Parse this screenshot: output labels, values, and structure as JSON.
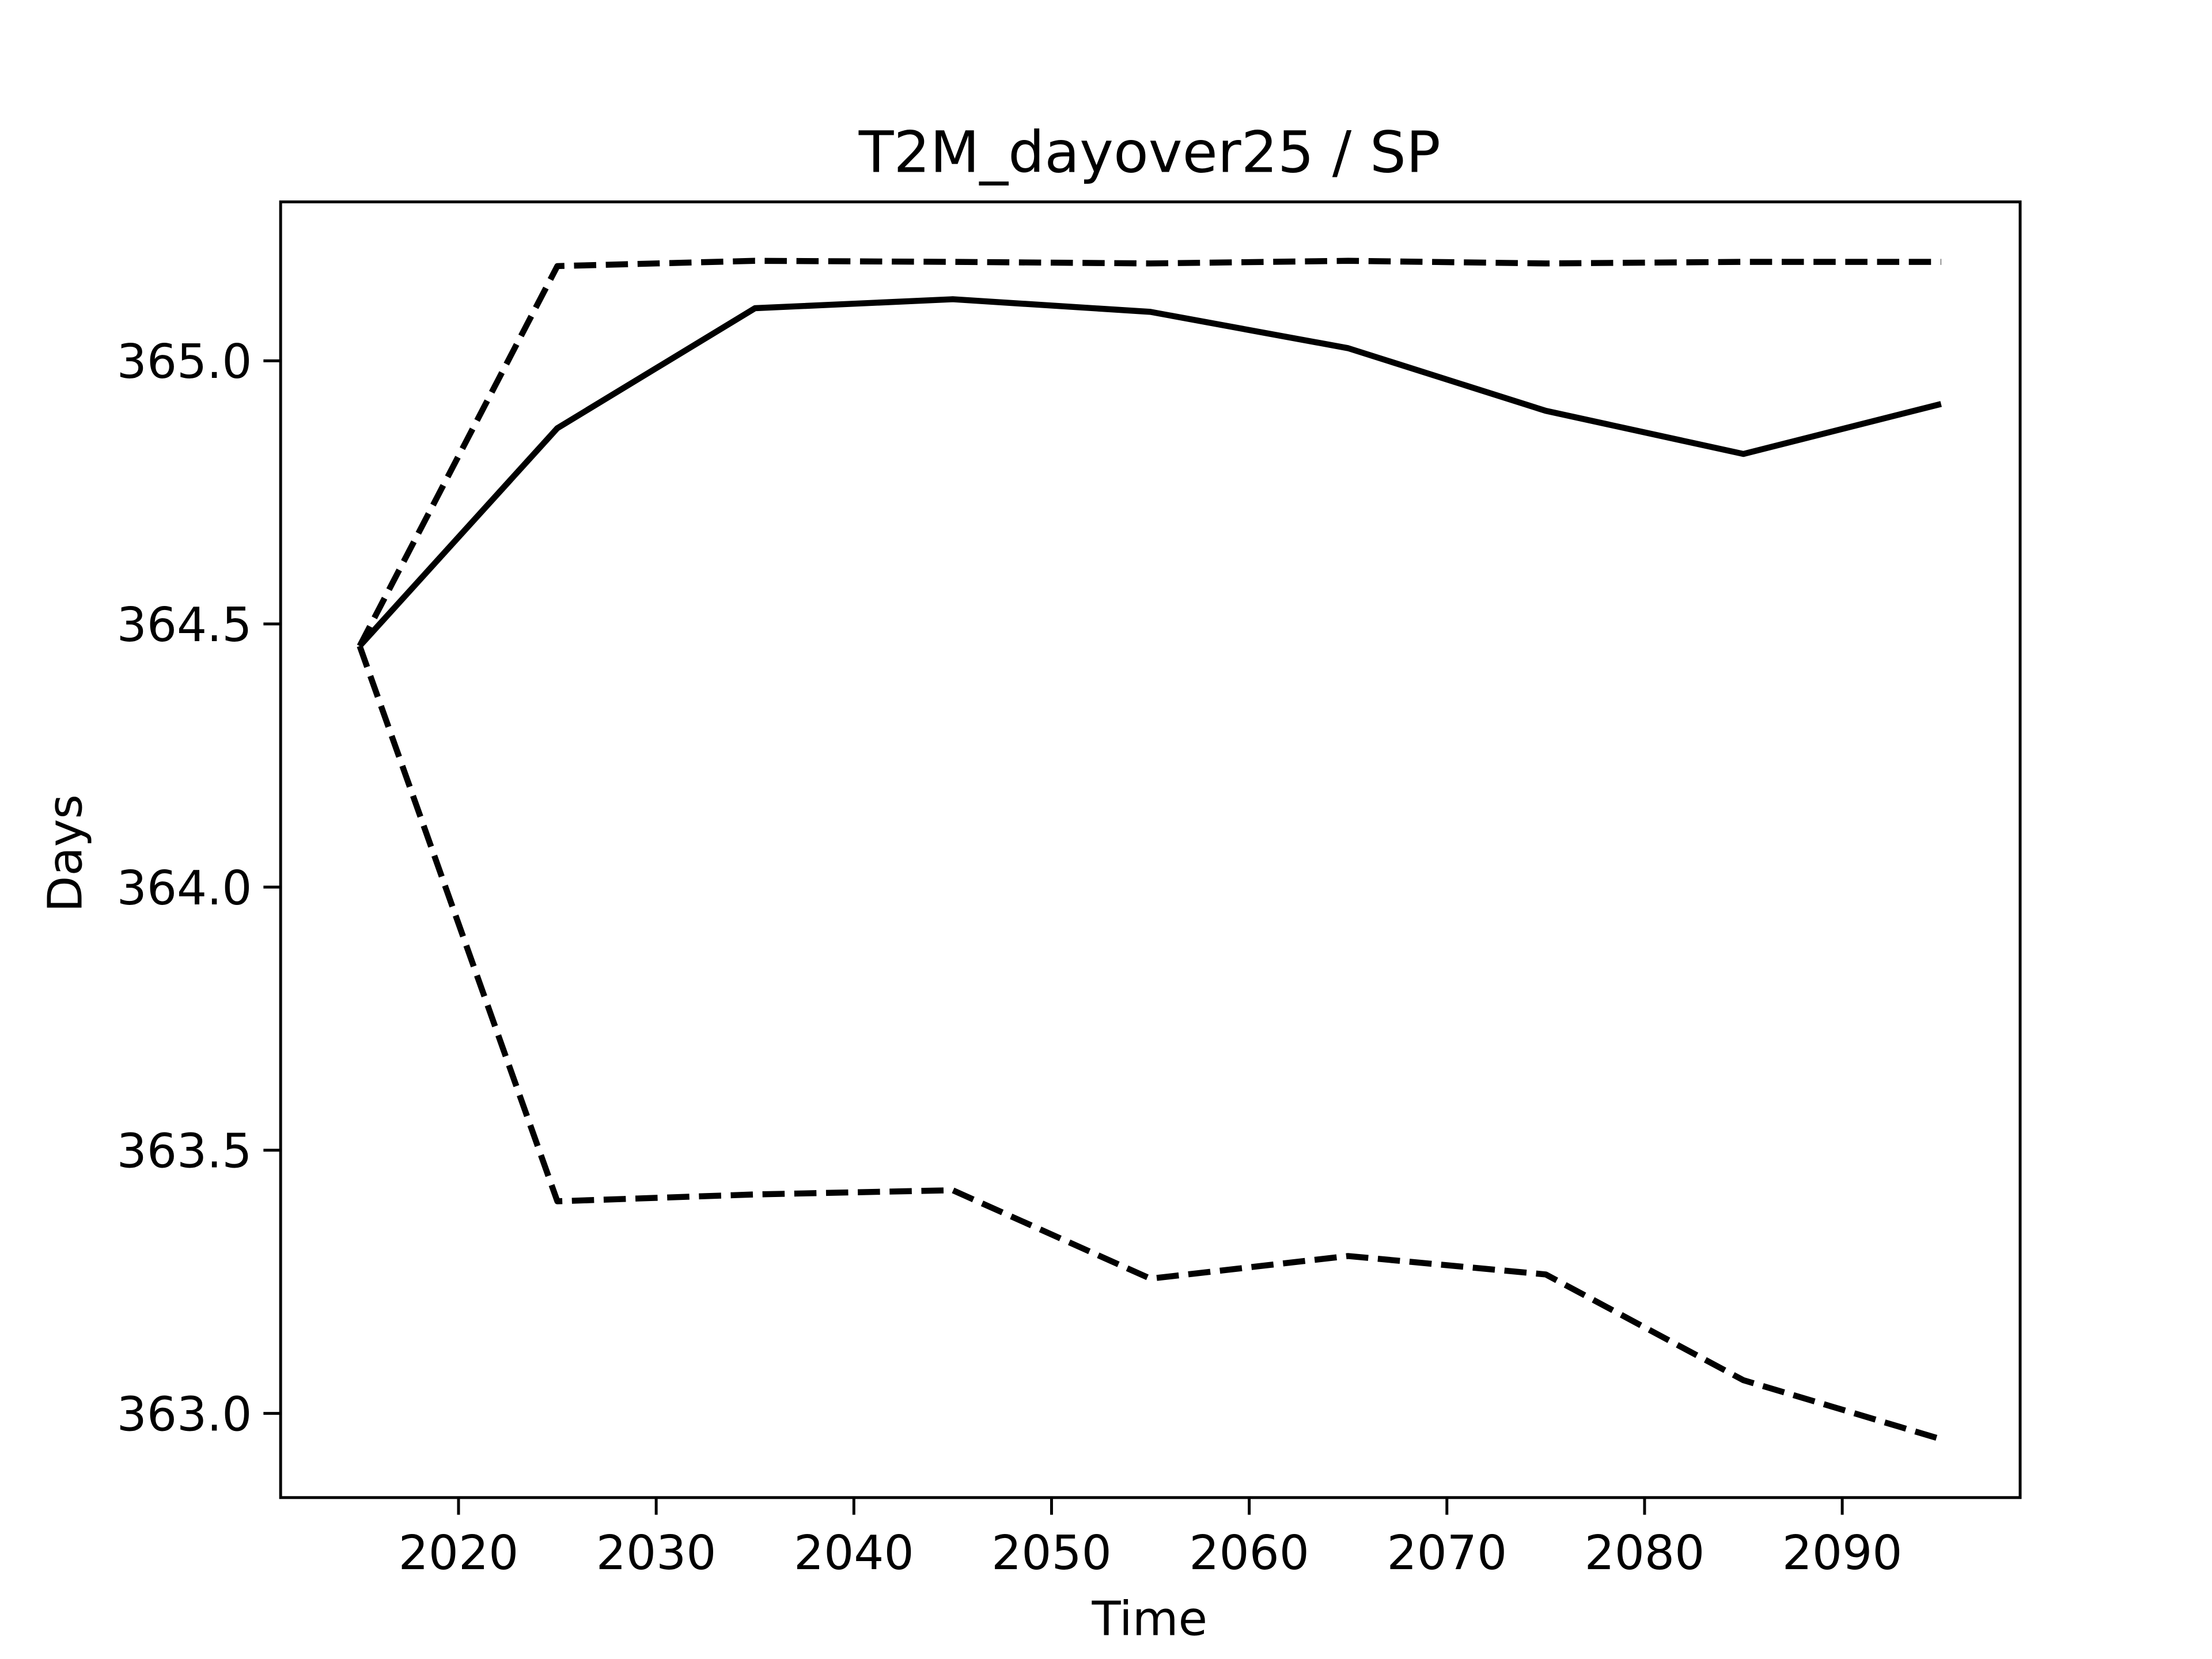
{
  "chart_data": {
    "type": "line",
    "title": "T2M_dayover25 / SP",
    "xlabel": "Time",
    "ylabel": "Days",
    "x": [
      2015,
      2025,
      2035,
      2045,
      2055,
      2065,
      2075,
      2085,
      2095
    ],
    "series": [
      {
        "color": "#000000",
        "style": "solid",
        "values": [
          364.458,
          364.872,
          365.1,
          365.117,
          365.093,
          365.024,
          364.905,
          364.823,
          364.918
        ]
      },
      {
        "color": "#000000",
        "style": "dashed",
        "values": [
          364.458,
          365.18,
          365.19,
          365.188,
          365.185,
          365.19,
          365.185,
          365.188,
          365.188
        ]
      },
      {
        "color": "#000000",
        "style": "dashed",
        "values": [
          364.458,
          363.403,
          363.416,
          363.424,
          363.256,
          363.299,
          363.264,
          363.063,
          362.951
        ]
      }
    ],
    "xlim": [
      2011,
      2099
    ],
    "xticks": [
      2020,
      2030,
      2040,
      2050,
      2060,
      2070,
      2080,
      2090
    ],
    "ylim": [
      362.84,
      365.302
    ],
    "yticks": [
      {
        "value": 363.0,
        "label": "363.0"
      },
      {
        "value": 363.5,
        "label": "363.5"
      },
      {
        "value": 364.0,
        "label": "364.0"
      },
      {
        "value": 364.5,
        "label": "364.5"
      },
      {
        "value": 365.0,
        "label": "365.0"
      }
    ],
    "grid": false
  }
}
